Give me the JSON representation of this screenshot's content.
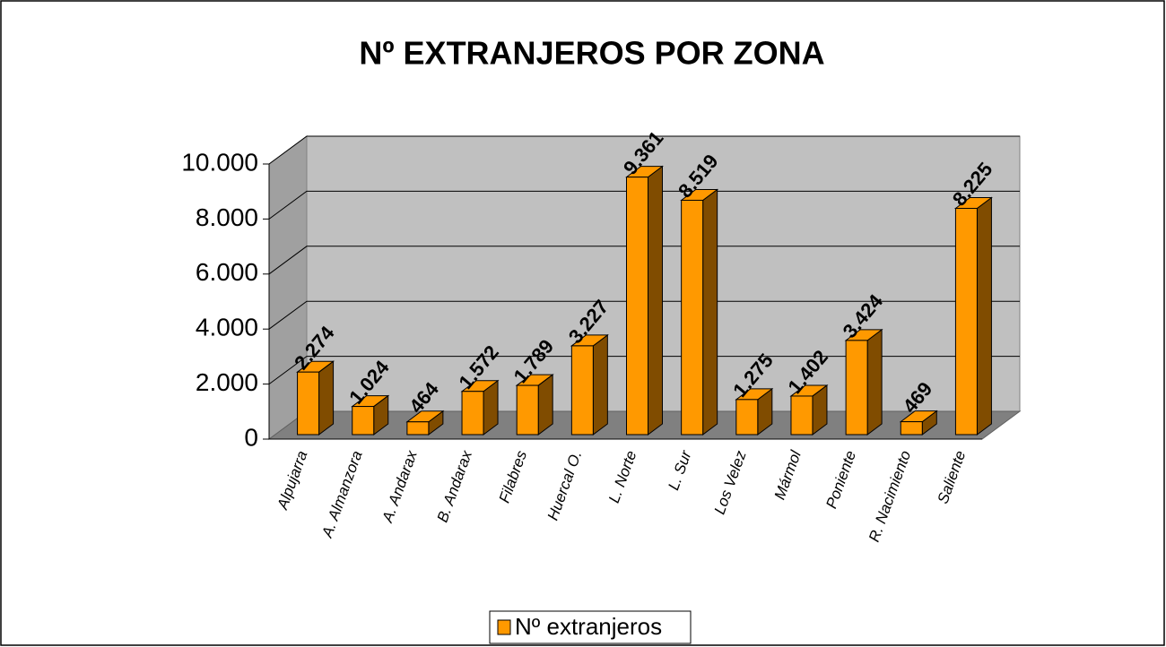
{
  "chart_data": {
    "type": "bar3d",
    "title": "Nº EXTRANJEROS POR ZONA",
    "categories": [
      "Alpujarra",
      "A. Almanzora",
      "A. Andarax",
      "B. Andarax",
      "Filabres",
      "Huercal O.",
      "L. Norte",
      "L. Sur",
      "Los Velez",
      "Mármol",
      "Poniente",
      "R. Nacimiento",
      "Saliente"
    ],
    "series": [
      {
        "name": "Nº extranjeros",
        "color": "#ff9900",
        "values": [
          2274,
          1024,
          464,
          1572,
          1789,
          3227,
          9361,
          8519,
          1275,
          1402,
          3424,
          469,
          8225
        ],
        "value_labels": [
          "2.274",
          "1.024",
          "464",
          "1.572",
          "1.789",
          "3.227",
          "9.361",
          "8.519",
          "1.275",
          "1.402",
          "3.424",
          "469",
          "8.225"
        ]
      }
    ],
    "ylim": [
      0,
      10000
    ],
    "yticks": [
      0,
      {
        "value": 2000,
        "label": "2.000"
      },
      {
        "value": 4000,
        "label": "4.000"
      },
      {
        "value": 6000,
        "label": "6.000"
      },
      {
        "value": 8000,
        "label": "8.000"
      },
      {
        "value": 10000,
        "label": "10.000"
      }
    ],
    "grid": true,
    "legend": "bottom"
  }
}
